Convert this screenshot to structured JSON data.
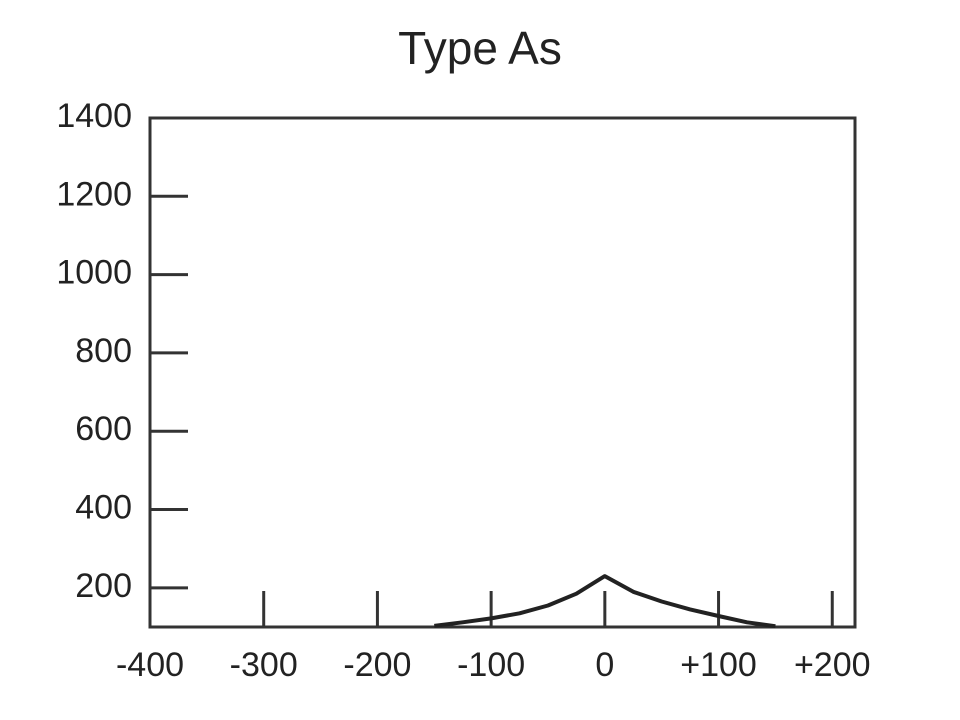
{
  "chart_data": {
    "type": "line",
    "title": "Type As",
    "x": [
      -150,
      -125,
      -100,
      -75,
      -50,
      -25,
      0,
      25,
      50,
      75,
      100,
      125,
      150
    ],
    "values": [
      103,
      112,
      122,
      135,
      155,
      185,
      230,
      190,
      165,
      145,
      128,
      112,
      102
    ],
    "color": "#222222",
    "xlim": [
      -400,
      220
    ],
    "xticks": [
      -400,
      -300,
      -200,
      -100,
      0,
      {
        "value": 100,
        "label": "+100"
      },
      {
        "value": 200,
        "label": "+200"
      }
    ],
    "ylim": [
      100,
      1400
    ],
    "yticks": [
      200,
      400,
      600,
      800,
      1000,
      1200,
      1400
    ],
    "grid": false
  }
}
